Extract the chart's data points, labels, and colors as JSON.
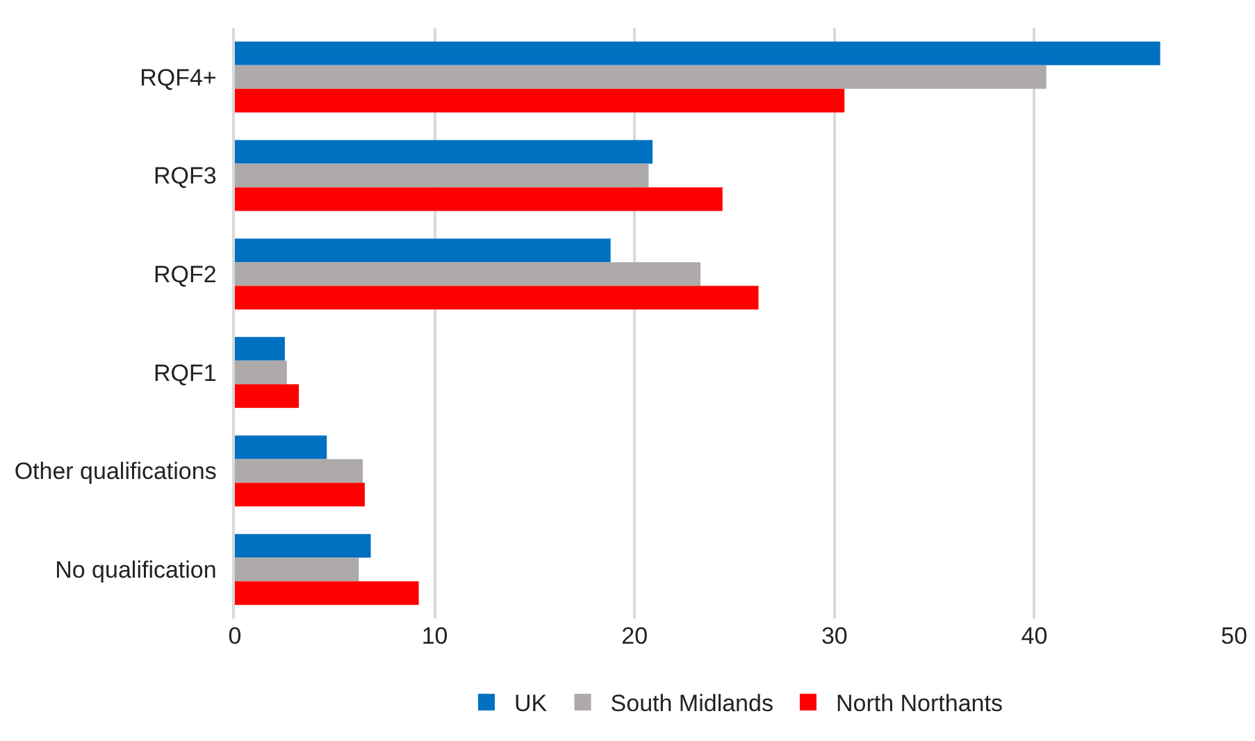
{
  "chart_data": {
    "type": "bar",
    "orientation": "horizontal",
    "categories": [
      "RQF4+",
      "RQF3",
      "RQF2",
      "RQF1",
      "Other qualifications",
      "No qualification"
    ],
    "series": [
      {
        "name": "UK",
        "color": "#0070c0",
        "values": [
          46.3,
          20.9,
          18.8,
          2.5,
          4.6,
          6.8
        ]
      },
      {
        "name": "South Midlands",
        "color": "#aeaaaa",
        "values": [
          40.6,
          20.7,
          23.3,
          2.6,
          6.4,
          6.2
        ]
      },
      {
        "name": "North Northants",
        "color": "#ff0000",
        "values": [
          30.5,
          24.4,
          26.2,
          3.2,
          6.5,
          9.2
        ]
      }
    ],
    "xlim": [
      0,
      50
    ],
    "xticks": [
      0,
      10,
      20,
      30,
      40,
      50
    ],
    "grid": "x",
    "legend": "bottom"
  }
}
